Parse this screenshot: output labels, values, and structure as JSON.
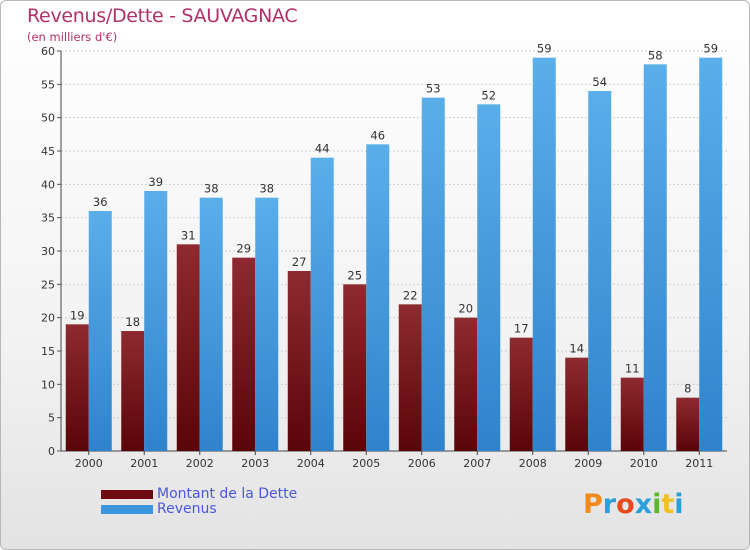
{
  "title": "Revenus/Dette - SAUVAGNAC",
  "subtitle": "(en milliers d'€)",
  "logo": {
    "text": "Proxiti",
    "colors": [
      "#f08a1c",
      "#2a9fd8",
      "#e84a1e",
      "#2a9fd8",
      "#5db82a",
      "#f0c020",
      "#2a9fd8"
    ]
  },
  "colors": {
    "dette": "#6e0b10",
    "revenus": "#3d95dc",
    "title": "#b0306a",
    "legend_text": "#4a58d8"
  },
  "chart_data": {
    "type": "bar",
    "categories": [
      "2000",
      "2001",
      "2002",
      "2003",
      "2004",
      "2005",
      "2006",
      "2007",
      "2008",
      "2009",
      "2010",
      "2011"
    ],
    "series": [
      {
        "name": "Montant de la Dette",
        "values": [
          19,
          18,
          31,
          29,
          27,
          25,
          22,
          20,
          17,
          14,
          11,
          8
        ]
      },
      {
        "name": "Revenus",
        "values": [
          36,
          39,
          38,
          38,
          44,
          46,
          53,
          52,
          59,
          54,
          58,
          59
        ]
      }
    ],
    "ylim": [
      0,
      60
    ],
    "yticks": [
      0,
      5,
      10,
      15,
      20,
      25,
      30,
      35,
      40,
      45,
      50,
      55,
      60
    ],
    "grid": true,
    "legend_position": "bottom-left"
  }
}
